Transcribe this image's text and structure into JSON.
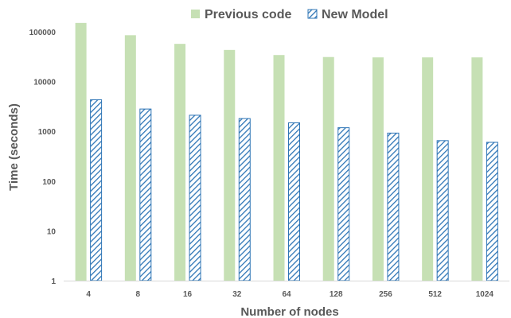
{
  "chart_data": {
    "type": "bar",
    "xlabel": "Number of nodes",
    "ylabel": "Time (seconds)",
    "categories": [
      "4",
      "8",
      "16",
      "32",
      "64",
      "128",
      "256",
      "512",
      "1024"
    ],
    "y_scale": "log",
    "ylim": [
      1,
      300000
    ],
    "y_ticks": [
      "1",
      "10",
      "100",
      "1000",
      "10000",
      "100000"
    ],
    "y_tick_values": [
      1,
      10,
      100,
      1000,
      10000,
      100000
    ],
    "grid": false,
    "legend_position": "top-right",
    "series": [
      {
        "name": "Previous code",
        "color": "#c6e0b4",
        "pattern": "solid",
        "values": [
          150000,
          85000,
          57000,
          43000,
          34000,
          31000,
          30500,
          30500,
          30500
        ]
      },
      {
        "name": "New Model",
        "color": "#2e75b6",
        "pattern": "diagonal-hatch",
        "values": [
          4300,
          2800,
          2100,
          1800,
          1480,
          1180,
          920,
          650,
          600
        ]
      }
    ]
  }
}
